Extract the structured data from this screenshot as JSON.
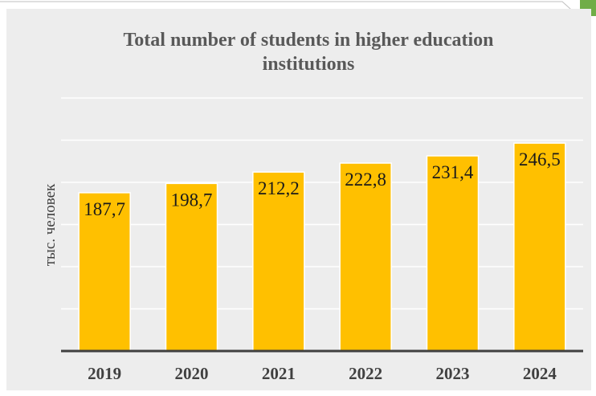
{
  "chart_data": {
    "type": "bar",
    "title": "Total number of students in higher education institutions",
    "xlabel": "",
    "ylabel": "тыс. человек",
    "categories": [
      "2019",
      "2020",
      "2021",
      "2022",
      "2023",
      "2024"
    ],
    "values": [
      187.7,
      198.7,
      212.2,
      222.8,
      231.4,
      246.5
    ],
    "value_labels": [
      "187,7",
      "198,7",
      "212,2",
      "222,8",
      "231,4",
      "246,5"
    ],
    "ylim": [
      0,
      300
    ],
    "grid": true,
    "legend": "none",
    "colors": {
      "bar": "#FFC000",
      "background": "#EDEDED",
      "gridline": "#FFFFFF",
      "baseline": "#404040",
      "accent_corner": "#70AD47"
    }
  }
}
